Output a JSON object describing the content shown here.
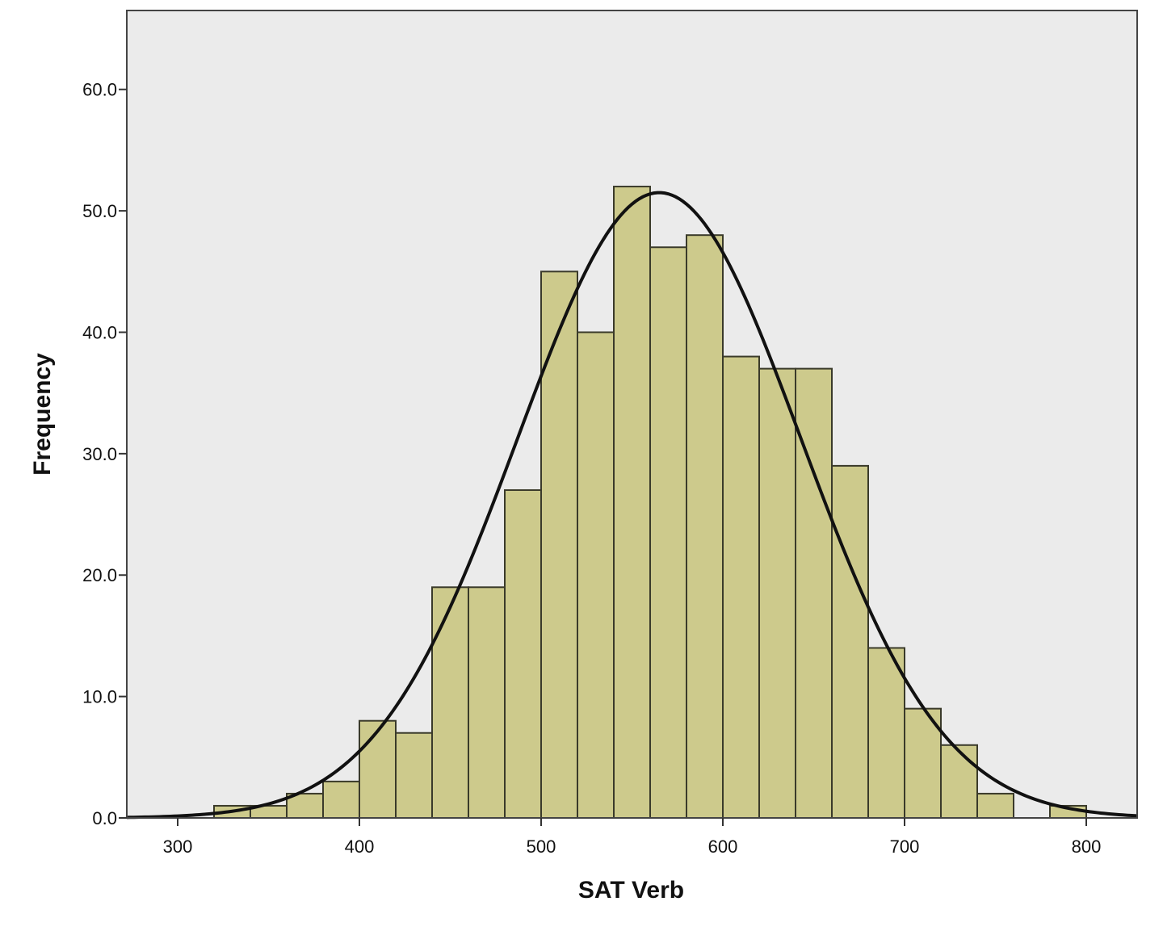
{
  "chart_data": {
    "type": "bar",
    "xlabel": "SAT Verb",
    "ylabel": "Frequency",
    "xlim": [
      272,
      828
    ],
    "ylim": [
      0,
      66.5
    ],
    "bin_width": 20,
    "x_ticks": [
      300,
      400,
      500,
      600,
      700,
      800
    ],
    "x_tick_labels": [
      "300",
      "400",
      "500",
      "600",
      "700",
      "800"
    ],
    "y_ticks": [
      0,
      10,
      20,
      30,
      40,
      50,
      60
    ],
    "y_tick_labels": [
      "0.0",
      "10.0",
      "20.0",
      "30.0",
      "40.0",
      "50.0",
      "60.0"
    ],
    "bins": [
      {
        "x0": 320,
        "x1": 340,
        "value": 1
      },
      {
        "x0": 340,
        "x1": 360,
        "value": 1
      },
      {
        "x0": 360,
        "x1": 380,
        "value": 2
      },
      {
        "x0": 380,
        "x1": 400,
        "value": 3
      },
      {
        "x0": 400,
        "x1": 420,
        "value": 8
      },
      {
        "x0": 420,
        "x1": 440,
        "value": 7
      },
      {
        "x0": 440,
        "x1": 460,
        "value": 19
      },
      {
        "x0": 460,
        "x1": 480,
        "value": 19
      },
      {
        "x0": 480,
        "x1": 500,
        "value": 27
      },
      {
        "x0": 500,
        "x1": 520,
        "value": 45
      },
      {
        "x0": 520,
        "x1": 540,
        "value": 40
      },
      {
        "x0": 540,
        "x1": 560,
        "value": 52
      },
      {
        "x0": 560,
        "x1": 580,
        "value": 47
      },
      {
        "x0": 580,
        "x1": 600,
        "value": 48
      },
      {
        "x0": 600,
        "x1": 620,
        "value": 38
      },
      {
        "x0": 620,
        "x1": 640,
        "value": 37
      },
      {
        "x0": 640,
        "x1": 660,
        "value": 37
      },
      {
        "x0": 660,
        "x1": 680,
        "value": 29
      },
      {
        "x0": 680,
        "x1": 700,
        "value": 14
      },
      {
        "x0": 700,
        "x1": 720,
        "value": 9
      },
      {
        "x0": 720,
        "x1": 740,
        "value": 6
      },
      {
        "x0": 740,
        "x1": 760,
        "value": 2
      },
      {
        "x0": 780,
        "x1": 800,
        "value": 1
      }
    ],
    "normal_curve": {
      "mean": 565,
      "sd": 78,
      "peak": 51.5
    },
    "grid": false,
    "colors": {
      "plot_background": "#ebebeb",
      "bar_fill": "#cdca8c",
      "bar_stroke": "#3a3a2a",
      "curve": "#111111",
      "frame": "#444444"
    }
  }
}
